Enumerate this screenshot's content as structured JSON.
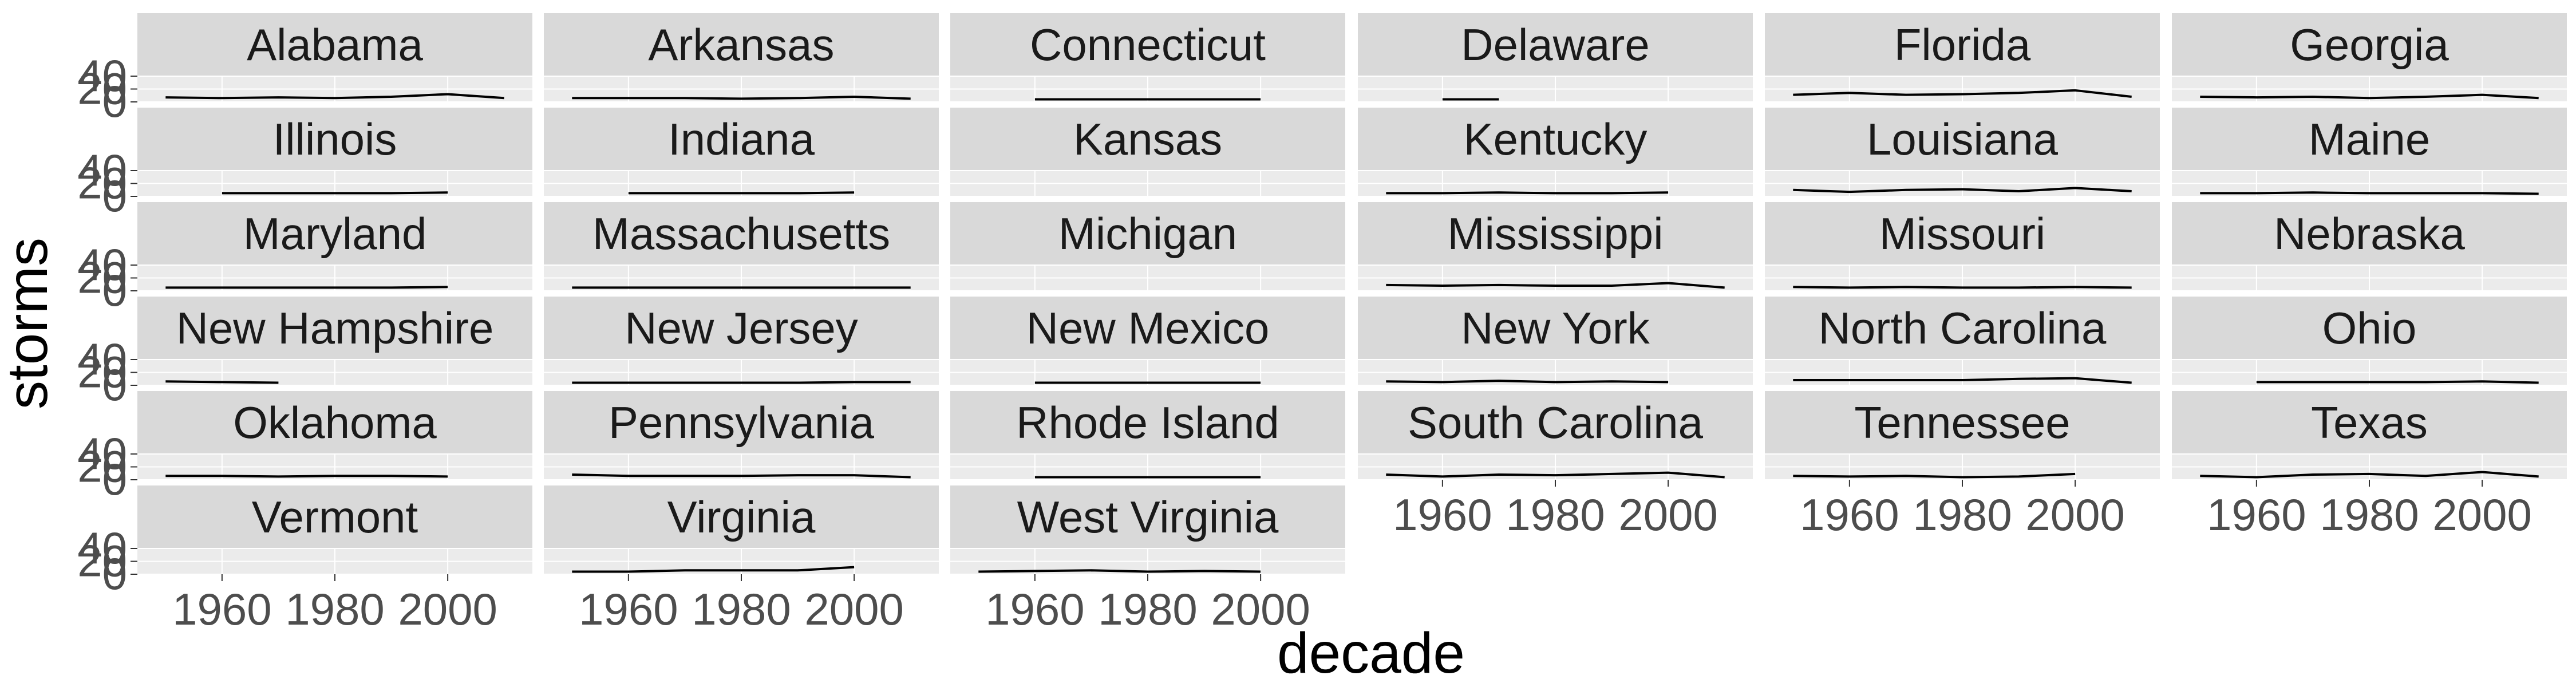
{
  "chart_data": {
    "type": "line",
    "facet_type": "wrap",
    "ncol": 6,
    "xlabel": "decade",
    "ylabel": "storms",
    "x_ticks": [
      1960,
      1980,
      2000
    ],
    "x_range": [
      1945,
      2015
    ],
    "y_ticks": [
      0,
      20,
      40
    ],
    "y_range": [
      0,
      40
    ],
    "grid": true,
    "line_color": "#000000",
    "strip_fill": "#d9d9d9",
    "panels": [
      {
        "name": "Alabama",
        "x": [
          1950,
          1960,
          1970,
          1980,
          1990,
          2000,
          2010
        ],
        "y": [
          7,
          6,
          7,
          6,
          8,
          12,
          6
        ]
      },
      {
        "name": "Arkansas",
        "x": [
          1950,
          1960,
          1970,
          1980,
          1990,
          2000,
          2010
        ],
        "y": [
          6,
          6,
          6,
          5,
          6,
          8,
          5
        ]
      },
      {
        "name": "Connecticut",
        "x": [
          1960,
          1970,
          1980,
          1990,
          2000
        ],
        "y": [
          4,
          4,
          4,
          4,
          4
        ]
      },
      {
        "name": "Delaware",
        "x": [
          1960,
          1970
        ],
        "y": [
          4,
          4
        ]
      },
      {
        "name": "Florida",
        "x": [
          1950,
          1960,
          1970,
          1980,
          1990,
          2000,
          2010
        ],
        "y": [
          11,
          14,
          11,
          12,
          14,
          18,
          8
        ]
      },
      {
        "name": "Georgia",
        "x": [
          1950,
          1960,
          1970,
          1980,
          1990,
          2000,
          2010
        ],
        "y": [
          8,
          7,
          8,
          6,
          8,
          11,
          6
        ]
      },
      {
        "name": "Illinois",
        "x": [
          1960,
          1970,
          1980,
          1990,
          2000
        ],
        "y": [
          5,
          5,
          5,
          5,
          6
        ]
      },
      {
        "name": "Indiana",
        "x": [
          1960,
          1970,
          1980,
          1990,
          2000
        ],
        "y": [
          5,
          5,
          5,
          5,
          6
        ]
      },
      {
        "name": "Kansas",
        "x": [],
        "y": []
      },
      {
        "name": "Kentucky",
        "x": [
          1950,
          1960,
          1970,
          1980,
          1990,
          2000
        ],
        "y": [
          5,
          5,
          6,
          5,
          5,
          6
        ]
      },
      {
        "name": "Louisiana",
        "x": [
          1950,
          1960,
          1970,
          1980,
          1990,
          2000,
          2010
        ],
        "y": [
          10,
          7,
          10,
          11,
          8,
          13,
          8
        ]
      },
      {
        "name": "Maine",
        "x": [
          1950,
          1960,
          1970,
          1980,
          1990,
          2000,
          2010
        ],
        "y": [
          5,
          5,
          6,
          5,
          5,
          5,
          4
        ]
      },
      {
        "name": "Maryland",
        "x": [
          1950,
          1960,
          1970,
          1980,
          1990,
          2000
        ],
        "y": [
          5,
          5,
          5,
          5,
          5,
          6
        ]
      },
      {
        "name": "Massachusetts",
        "x": [
          1950,
          1960,
          1970,
          1980,
          1990,
          2000,
          2010
        ],
        "y": [
          5,
          5,
          5,
          5,
          5,
          5,
          5
        ]
      },
      {
        "name": "Michigan",
        "x": [],
        "y": []
      },
      {
        "name": "Mississippi",
        "x": [
          1950,
          1960,
          1970,
          1980,
          1990,
          2000,
          2010
        ],
        "y": [
          9,
          8,
          9,
          8,
          8,
          12,
          5
        ]
      },
      {
        "name": "Missouri",
        "x": [
          1950,
          1960,
          1970,
          1980,
          1990,
          2000,
          2010
        ],
        "y": [
          6,
          5,
          6,
          5,
          5,
          6,
          5
        ]
      },
      {
        "name": "Nebraska",
        "x": [],
        "y": []
      },
      {
        "name": "New Hampshire",
        "x": [
          1950,
          1960,
          1970
        ],
        "y": [
          6,
          5,
          4
        ]
      },
      {
        "name": "New Jersey",
        "x": [
          1950,
          1960,
          1970,
          1980,
          1990,
          2000,
          2010
        ],
        "y": [
          4,
          4,
          4,
          4,
          4,
          5,
          5
        ]
      },
      {
        "name": "New Mexico",
        "x": [
          1960,
          1970,
          1980,
          1990,
          2000
        ],
        "y": [
          4,
          4,
          4,
          4,
          4
        ]
      },
      {
        "name": "New York",
        "x": [
          1950,
          1960,
          1970,
          1980,
          1990,
          2000
        ],
        "y": [
          6,
          5,
          7,
          5,
          6,
          5
        ]
      },
      {
        "name": "North Carolina",
        "x": [
          1950,
          1960,
          1970,
          1980,
          1990,
          2000,
          2010
        ],
        "y": [
          8,
          8,
          8,
          8,
          10,
          11,
          4
        ]
      },
      {
        "name": "Ohio",
        "x": [
          1960,
          1970,
          1980,
          1990,
          2000,
          2010
        ],
        "y": [
          5,
          5,
          5,
          5,
          6,
          4
        ]
      },
      {
        "name": "Oklahoma",
        "x": [
          1950,
          1960,
          1970,
          1980,
          1990,
          2000
        ],
        "y": [
          6,
          6,
          5,
          6,
          6,
          5
        ]
      },
      {
        "name": "Pennsylvania",
        "x": [
          1950,
          1960,
          1970,
          1980,
          1990,
          2000,
          2010
        ],
        "y": [
          8,
          6,
          6,
          6,
          7,
          7,
          4
        ]
      },
      {
        "name": "Rhode Island",
        "x": [
          1960,
          1970,
          1980,
          1990,
          2000
        ],
        "y": [
          4,
          4,
          4,
          4,
          4
        ]
      },
      {
        "name": "South Carolina",
        "x": [
          1950,
          1960,
          1970,
          1980,
          1990,
          2000,
          2010
        ],
        "y": [
          8,
          5,
          8,
          7,
          9,
          11,
          4
        ]
      },
      {
        "name": "Tennessee",
        "x": [
          1950,
          1960,
          1970,
          1980,
          1990,
          2000
        ],
        "y": [
          6,
          5,
          6,
          4,
          5,
          9
        ]
      },
      {
        "name": "Texas",
        "x": [
          1950,
          1960,
          1970,
          1980,
          1990,
          2000,
          2010
        ],
        "y": [
          6,
          4,
          8,
          9,
          6,
          12,
          5
        ]
      },
      {
        "name": "Vermont",
        "x": [],
        "y": []
      },
      {
        "name": "Virginia",
        "x": [
          1950,
          1960,
          1970,
          1980,
          1990,
          2000
        ],
        "y": [
          4,
          4,
          6,
          6,
          6,
          11
        ]
      },
      {
        "name": "West Virginia",
        "x": [
          1950,
          1960,
          1970,
          1980,
          1990,
          2000
        ],
        "y": [
          4,
          5,
          6,
          4,
          5,
          4
        ]
      }
    ]
  }
}
